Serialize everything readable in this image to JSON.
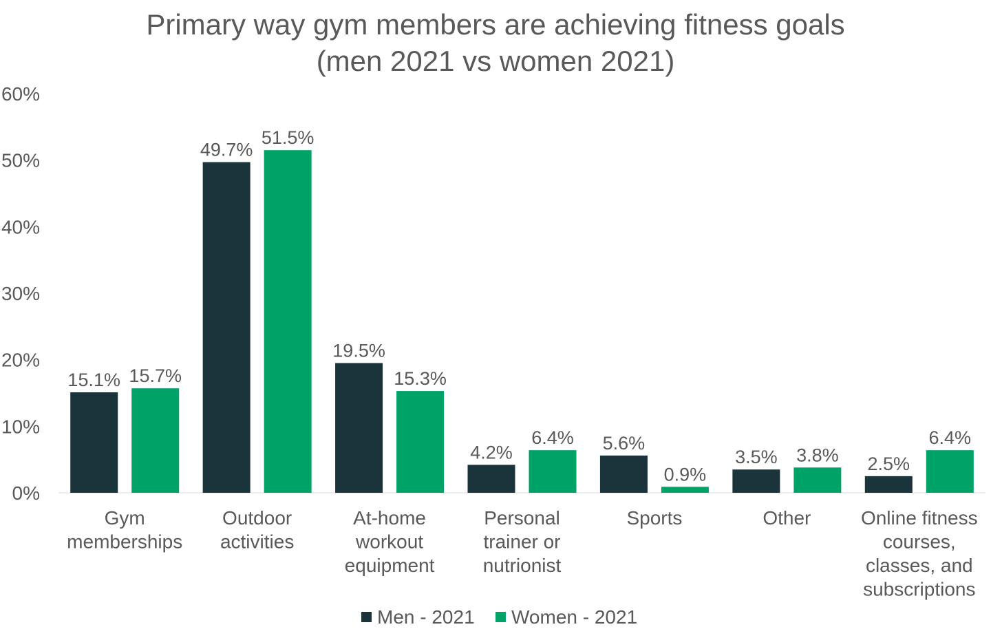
{
  "chart_data": {
    "type": "bar",
    "title": [
      "Primary way gym members are achieving fitness goals",
      "(men 2021 vs women 2021)"
    ],
    "xlabel": "",
    "ylabel": "",
    "ylim": [
      0,
      60
    ],
    "yticks": [
      "0%",
      "10%",
      "20%",
      "30%",
      "40%",
      "50%",
      "60%"
    ],
    "grid": false,
    "legend_position": "bottom",
    "categories": [
      [
        "Gym",
        "memberships"
      ],
      [
        "Outdoor",
        "activities"
      ],
      [
        "At-home",
        "workout",
        "equipment"
      ],
      [
        "Personal",
        "trainer or",
        "nutrionist"
      ],
      [
        "Sports"
      ],
      [
        "Other"
      ],
      [
        "Online fitness",
        "courses,",
        "classes, and",
        "subscriptions"
      ]
    ],
    "series": [
      {
        "name": "Men - 2021",
        "color": "#1b333a",
        "values": [
          15.1,
          49.7,
          19.5,
          4.2,
          5.6,
          3.5,
          2.5
        ],
        "labels": [
          "15.1%",
          "49.7%",
          "19.5%",
          "4.2%",
          "5.6%",
          "3.5%",
          "2.5%"
        ]
      },
      {
        "name": "Women - 2021",
        "color": "#00a367",
        "values": [
          15.7,
          51.5,
          15.3,
          6.4,
          0.9,
          3.8,
          6.4
        ],
        "labels": [
          "15.7%",
          "51.5%",
          "15.3%",
          "6.4%",
          "0.9%",
          "3.8%",
          "6.4%"
        ]
      }
    ]
  }
}
